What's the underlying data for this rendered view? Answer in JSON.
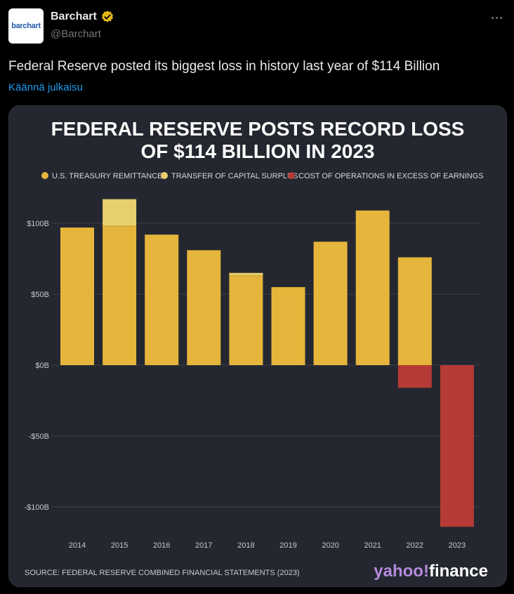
{
  "post": {
    "avatar_text": "barchart",
    "display_name": "Barchart",
    "handle": "@Barchart",
    "text": "Federal Reserve posted its biggest loss in history last year of $114 Billion",
    "translate_label": "Käännä julkaisu"
  },
  "colors": {
    "treasury": "#e6b53c",
    "capital_surplus": "#e8cf6e",
    "cost_operations": "#b63a35",
    "verified": "#e2b719",
    "link": "#1d9bf0"
  },
  "chart_data": {
    "type": "bar",
    "title_lines": [
      "FEDERAL RESERVE POSTS RECORD LOSS",
      "OF $114 BILLION IN 2023"
    ],
    "categories": [
      "2014",
      "2015",
      "2016",
      "2017",
      "2018",
      "2019",
      "2020",
      "2021",
      "2022",
      "2023"
    ],
    "series": [
      {
        "name": "U.S. TREASURY REMITTANCES",
        "values": [
          97,
          98,
          92,
          81,
          63,
          55,
          87,
          109,
          76,
          0
        ]
      },
      {
        "name": "TRANSFER OF CAPITAL SURPLUS",
        "values": [
          0,
          19,
          0,
          0,
          2,
          0,
          0,
          0,
          0,
          0
        ]
      },
      {
        "name": "COST OF OPERATIONS IN EXCESS OF EARNINGS",
        "values": [
          0,
          0,
          0,
          0,
          0,
          0,
          0,
          0,
          -16,
          -114
        ]
      }
    ],
    "y_ticks": [
      100,
      50,
      0,
      -50,
      -100
    ],
    "y_tick_labels": [
      "$100B",
      "$50B",
      "$0B",
      "-$50B",
      "-$100B"
    ],
    "ylim": [
      -115,
      120
    ],
    "grid": true,
    "legend_position": "top",
    "source": "SOURCE: FEDERAL RESERVE COMBINED FINANCIAL STATEMENTS (2023)",
    "brand": "yahoo!finance"
  }
}
